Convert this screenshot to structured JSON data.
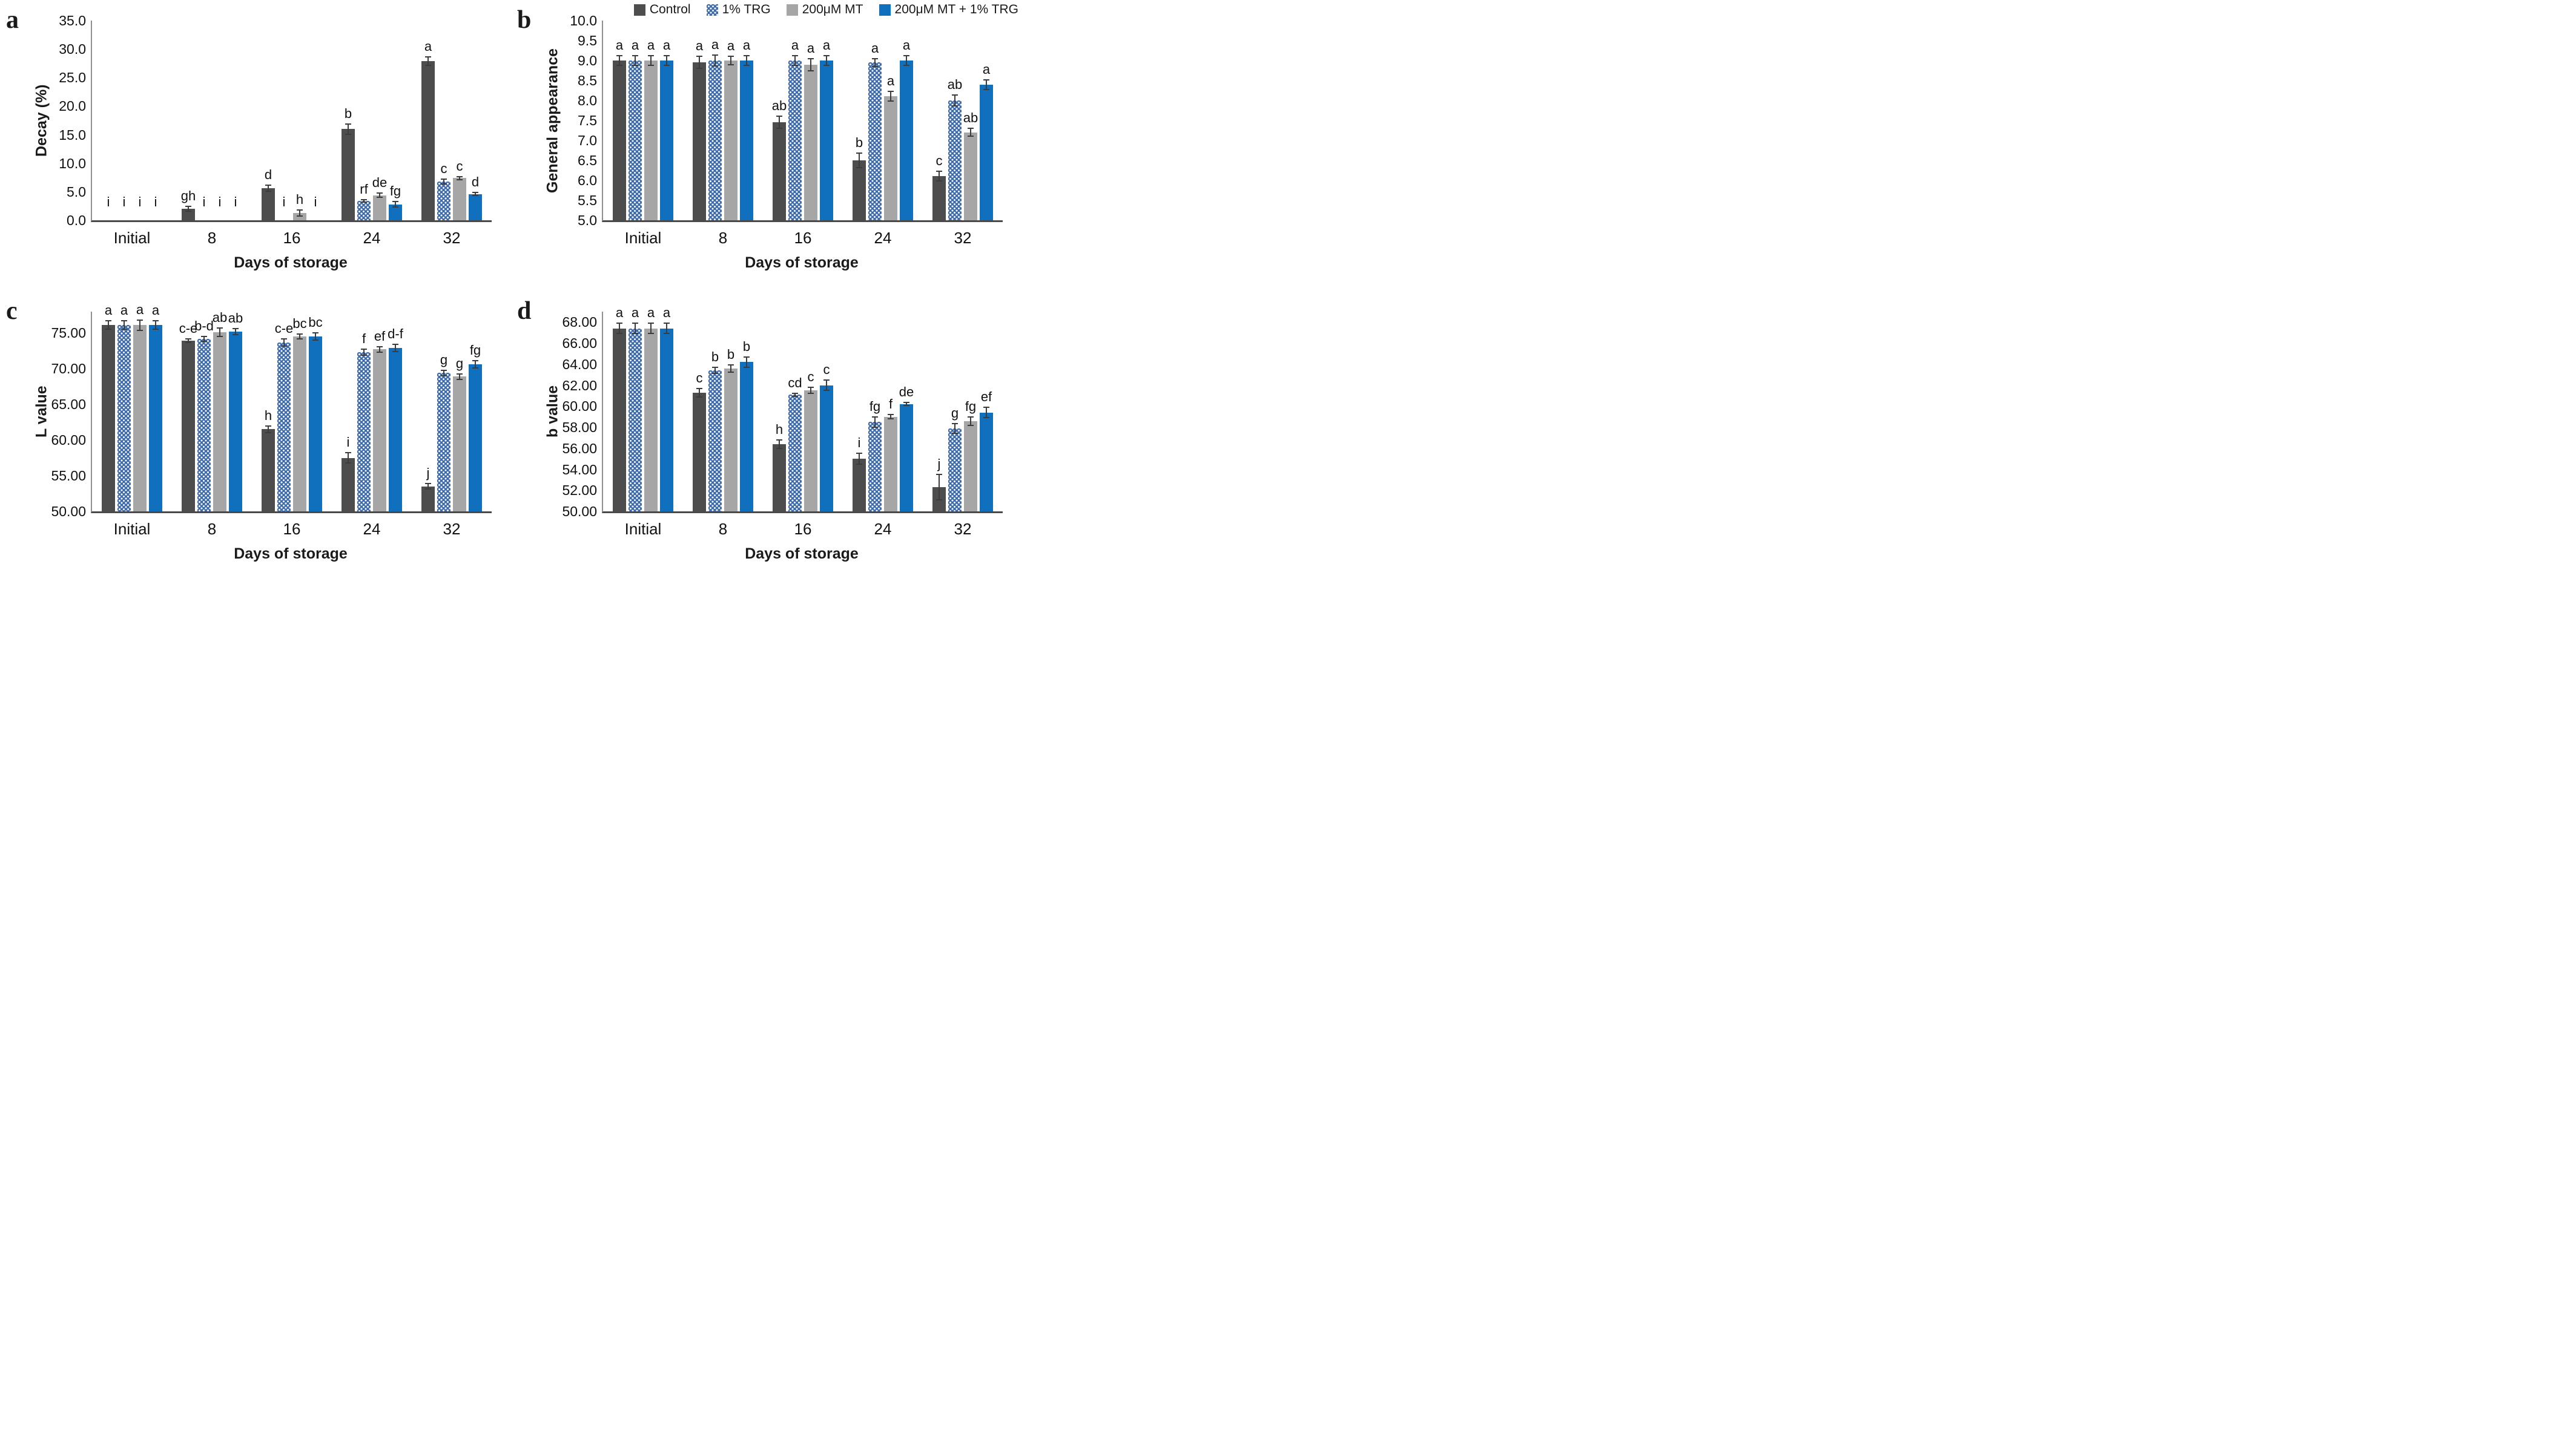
{
  "figure": {
    "x_axis_label": "Days of storage",
    "categories": [
      "Initial",
      "8",
      "16",
      "24",
      "32"
    ],
    "legend": [
      {
        "name": "Control",
        "style": "control"
      },
      {
        "name": "1% TRG",
        "style": "trg"
      },
      {
        "name": "200μM MT",
        "style": "mt"
      },
      {
        "name": "200μM MT + 1% TRG",
        "style": "mt-trg"
      }
    ],
    "colors": {
      "control": "#4d4d4d",
      "trg_pattern_base": "#3e6bac",
      "trg_pattern_dots": "#ffffff",
      "mt": "#a6a6a6",
      "mt_trg": "#1170bd",
      "error_bar": "#3c3c3c",
      "axis_line": "#4a4a4a"
    }
  },
  "chart_data": [
    {
      "panel_label": "a",
      "type": "bar",
      "ylabel": "Decay (%)",
      "xlabel": "Days of storage",
      "ymin": 0,
      "ytick_max": 35,
      "ystep": 5,
      "decimals": 1,
      "scale_min": 0,
      "scale_max": 35,
      "zero_letter_value": 1.4,
      "legend_position": "none",
      "grid": false,
      "categories": [
        "Initial",
        "8",
        "16",
        "24",
        "32"
      ],
      "series": [
        {
          "name": "Control",
          "style": "control",
          "values": [
            0,
            2.0,
            5.6,
            16.0,
            27.9
          ],
          "errors": [
            0,
            0.45,
            0.55,
            0.9,
            0.7
          ],
          "letters": [
            "i",
            "gh",
            "d",
            "b",
            "a"
          ]
        },
        {
          "name": "1% TRG",
          "style": "trg",
          "values": [
            0,
            0,
            0,
            3.4,
            6.8
          ],
          "errors": [
            0,
            0,
            0,
            0.25,
            0.4
          ],
          "letters": [
            "i",
            "i",
            "i",
            "rf",
            "c"
          ]
        },
        {
          "name": "200μM MT",
          "style": "mt",
          "values": [
            0,
            0,
            1.3,
            4.4,
            7.4
          ],
          "errors": [
            0,
            0,
            0.55,
            0.35,
            0.25
          ],
          "letters": [
            "i",
            "i",
            "h",
            "de",
            "c"
          ]
        },
        {
          "name": "200μM MT + 1% TRG",
          "style": "mt-trg",
          "values": [
            0,
            0,
            0,
            2.8,
            4.6
          ],
          "errors": [
            0,
            0,
            0,
            0.45,
            0.3
          ],
          "letters": [
            "i",
            "i",
            "i",
            "fg",
            "d"
          ]
        }
      ]
    },
    {
      "panel_label": "b",
      "type": "bar",
      "ylabel": "General appearance",
      "xlabel": "Days of storage",
      "ymin": 5.0,
      "ytick_max": 10.0,
      "ystep": 0.5,
      "decimals": 1,
      "scale_min": 5.0,
      "scale_max": 10.0,
      "legend_position": "top",
      "grid": false,
      "categories": [
        "Initial",
        "8",
        "16",
        "24",
        "32"
      ],
      "series": [
        {
          "name": "Control",
          "style": "control",
          "values": [
            9.0,
            8.95,
            7.45,
            6.5,
            6.1
          ],
          "errors": [
            0.12,
            0.15,
            0.15,
            0.18,
            0.12
          ],
          "letters": [
            "a",
            "a",
            "ab",
            "b",
            "c"
          ]
        },
        {
          "name": "1% TRG",
          "style": "trg",
          "values": [
            9.0,
            9.0,
            9.0,
            8.95,
            8.0
          ],
          "errors": [
            0.12,
            0.13,
            0.12,
            0.1,
            0.13
          ],
          "letters": [
            "a",
            "a",
            "a",
            "a",
            "ab"
          ]
        },
        {
          "name": "200μM MT",
          "style": "mt",
          "values": [
            9.0,
            9.0,
            8.9,
            8.1,
            7.2
          ],
          "errors": [
            0.12,
            0.1,
            0.15,
            0.12,
            0.1
          ],
          "letters": [
            "a",
            "a",
            "a",
            "a",
            "ab"
          ]
        },
        {
          "name": "200μM MT + 1% TRG",
          "style": "mt-trg",
          "values": [
            9.0,
            9.0,
            9.0,
            9.0,
            8.4
          ],
          "errors": [
            0.12,
            0.12,
            0.12,
            0.12,
            0.12
          ],
          "letters": [
            "a",
            "a",
            "a",
            "a",
            "a"
          ]
        }
      ]
    },
    {
      "panel_label": "c",
      "type": "bar",
      "ylabel": "L value",
      "xlabel": "Days of storage",
      "ymin": 50,
      "ytick_max": 75,
      "ystep": 5,
      "decimals": 2,
      "scale_min": 50,
      "scale_max": 78,
      "legend_position": "none",
      "grid": false,
      "categories": [
        "Initial",
        "8",
        "16",
        "24",
        "32"
      ],
      "series": [
        {
          "name": "Control",
          "style": "control",
          "values": [
            76.1,
            73.9,
            61.5,
            57.5,
            53.5
          ],
          "errors": [
            0.6,
            0.25,
            0.45,
            0.7,
            0.4
          ],
          "letters": [
            "a",
            "c-e",
            "h",
            "i",
            "j"
          ]
        },
        {
          "name": "1% TRG",
          "style": "trg",
          "values": [
            76.1,
            74.2,
            73.7,
            72.3,
            69.4
          ],
          "errors": [
            0.6,
            0.35,
            0.5,
            0.45,
            0.4
          ],
          "letters": [
            "a",
            "b-d",
            "c-e",
            "f",
            "g"
          ]
        },
        {
          "name": "200μM MT",
          "style": "mt",
          "values": [
            76.1,
            75.1,
            74.5,
            72.7,
            68.9
          ],
          "errors": [
            0.7,
            0.6,
            0.35,
            0.4,
            0.4
          ],
          "letters": [
            "a",
            "ab",
            "bc",
            "ef",
            "g"
          ]
        },
        {
          "name": "200μM MT + 1% TRG",
          "style": "mt-trg",
          "values": [
            76.1,
            75.2,
            74.5,
            72.9,
            70.6
          ],
          "errors": [
            0.6,
            0.45,
            0.5,
            0.5,
            0.5
          ],
          "letters": [
            "a",
            "ab",
            "bc",
            "d-f",
            "fg"
          ]
        }
      ]
    },
    {
      "panel_label": "d",
      "type": "bar",
      "ylabel": "b value",
      "xlabel": "Days of storage",
      "ymin": 50,
      "ytick_max": 68,
      "ystep": 2,
      "decimals": 2,
      "scale_min": 50,
      "scale_max": 69,
      "legend_position": "none",
      "grid": false,
      "categories": [
        "Initial",
        "8",
        "16",
        "24",
        "32"
      ],
      "series": [
        {
          "name": "Control",
          "style": "control",
          "values": [
            67.4,
            61.3,
            56.4,
            55.0,
            52.3
          ],
          "errors": [
            0.5,
            0.4,
            0.4,
            0.5,
            1.2
          ],
          "letters": [
            "a",
            "c",
            "h",
            "i",
            "j"
          ]
        },
        {
          "name": "1% TRG",
          "style": "trg",
          "values": [
            67.4,
            63.4,
            61.1,
            58.5,
            57.9
          ],
          "errors": [
            0.5,
            0.3,
            0.15,
            0.5,
            0.45
          ],
          "letters": [
            "a",
            "b",
            "cd",
            "fg",
            "g"
          ]
        },
        {
          "name": "200μM MT",
          "style": "mt",
          "values": [
            67.4,
            63.6,
            61.5,
            59.0,
            58.6
          ],
          "errors": [
            0.5,
            0.35,
            0.3,
            0.2,
            0.4
          ],
          "letters": [
            "a",
            "b",
            "c",
            "f",
            "fg"
          ]
        },
        {
          "name": "200μM MT + 1% TRG",
          "style": "mt-trg",
          "values": [
            67.4,
            64.2,
            62.0,
            60.2,
            59.4
          ],
          "errors": [
            0.5,
            0.5,
            0.5,
            0.15,
            0.5
          ],
          "letters": [
            "a",
            "b",
            "c",
            "de",
            "ef"
          ]
        }
      ]
    }
  ]
}
